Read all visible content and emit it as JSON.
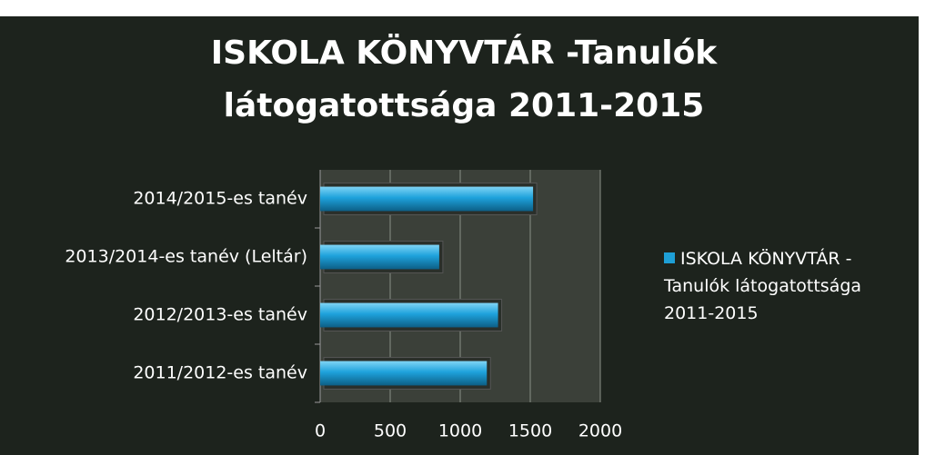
{
  "chart_data": {
    "type": "bar",
    "orientation": "horizontal",
    "title": "ISKOLA KÖNYVTÁR -Tanulók látogatottsága 2011-2015",
    "categories": [
      "2011/2012-es tanév",
      "2012/2013-es tanév",
      "2013/2014-es tanév (Leltár)",
      "2014/2015-es tanév"
    ],
    "series": [
      {
        "name": "ISKOLA KÖNYVTÁR - Tanulók látogatottsága 2011-2015",
        "color": "#1e9fd6",
        "values": [
          1190,
          1270,
          850,
          1520
        ]
      }
    ],
    "xlim": [
      0,
      2000
    ],
    "xticks": [
      0,
      500,
      1000,
      1500,
      2000
    ],
    "grid": true,
    "legend": "right"
  }
}
